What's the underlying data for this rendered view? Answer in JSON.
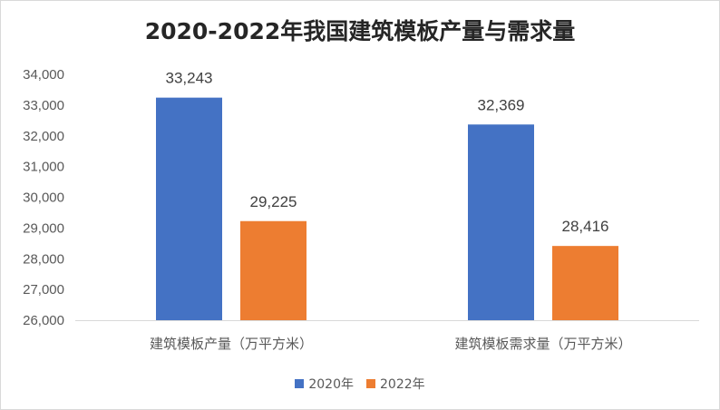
{
  "chart_data": {
    "type": "bar",
    "title": "2020-2022年我国建筑模板产量与需求量",
    "categories": [
      "建筑模板产量（万平方米）",
      "建筑模板需求量（万平方米）"
    ],
    "series": [
      {
        "name": "2020年",
        "color": "#4472C4",
        "values": [
          33243,
          32369
        ],
        "labels": [
          "33,243",
          "32,369"
        ]
      },
      {
        "name": "2022年",
        "color": "#ED7D31",
        "values": [
          29225,
          28416
        ],
        "labels": [
          "29,225",
          "28,416"
        ]
      }
    ],
    "ylim": [
      26000,
      34000
    ],
    "yticks": [
      26000,
      27000,
      28000,
      29000,
      30000,
      31000,
      32000,
      33000,
      34000
    ],
    "ytick_labels": [
      "26,000",
      "27,000",
      "28,000",
      "29,000",
      "30,000",
      "31,000",
      "32,000",
      "33,000",
      "34,000"
    ],
    "grid": false,
    "legend_position": "bottom"
  }
}
